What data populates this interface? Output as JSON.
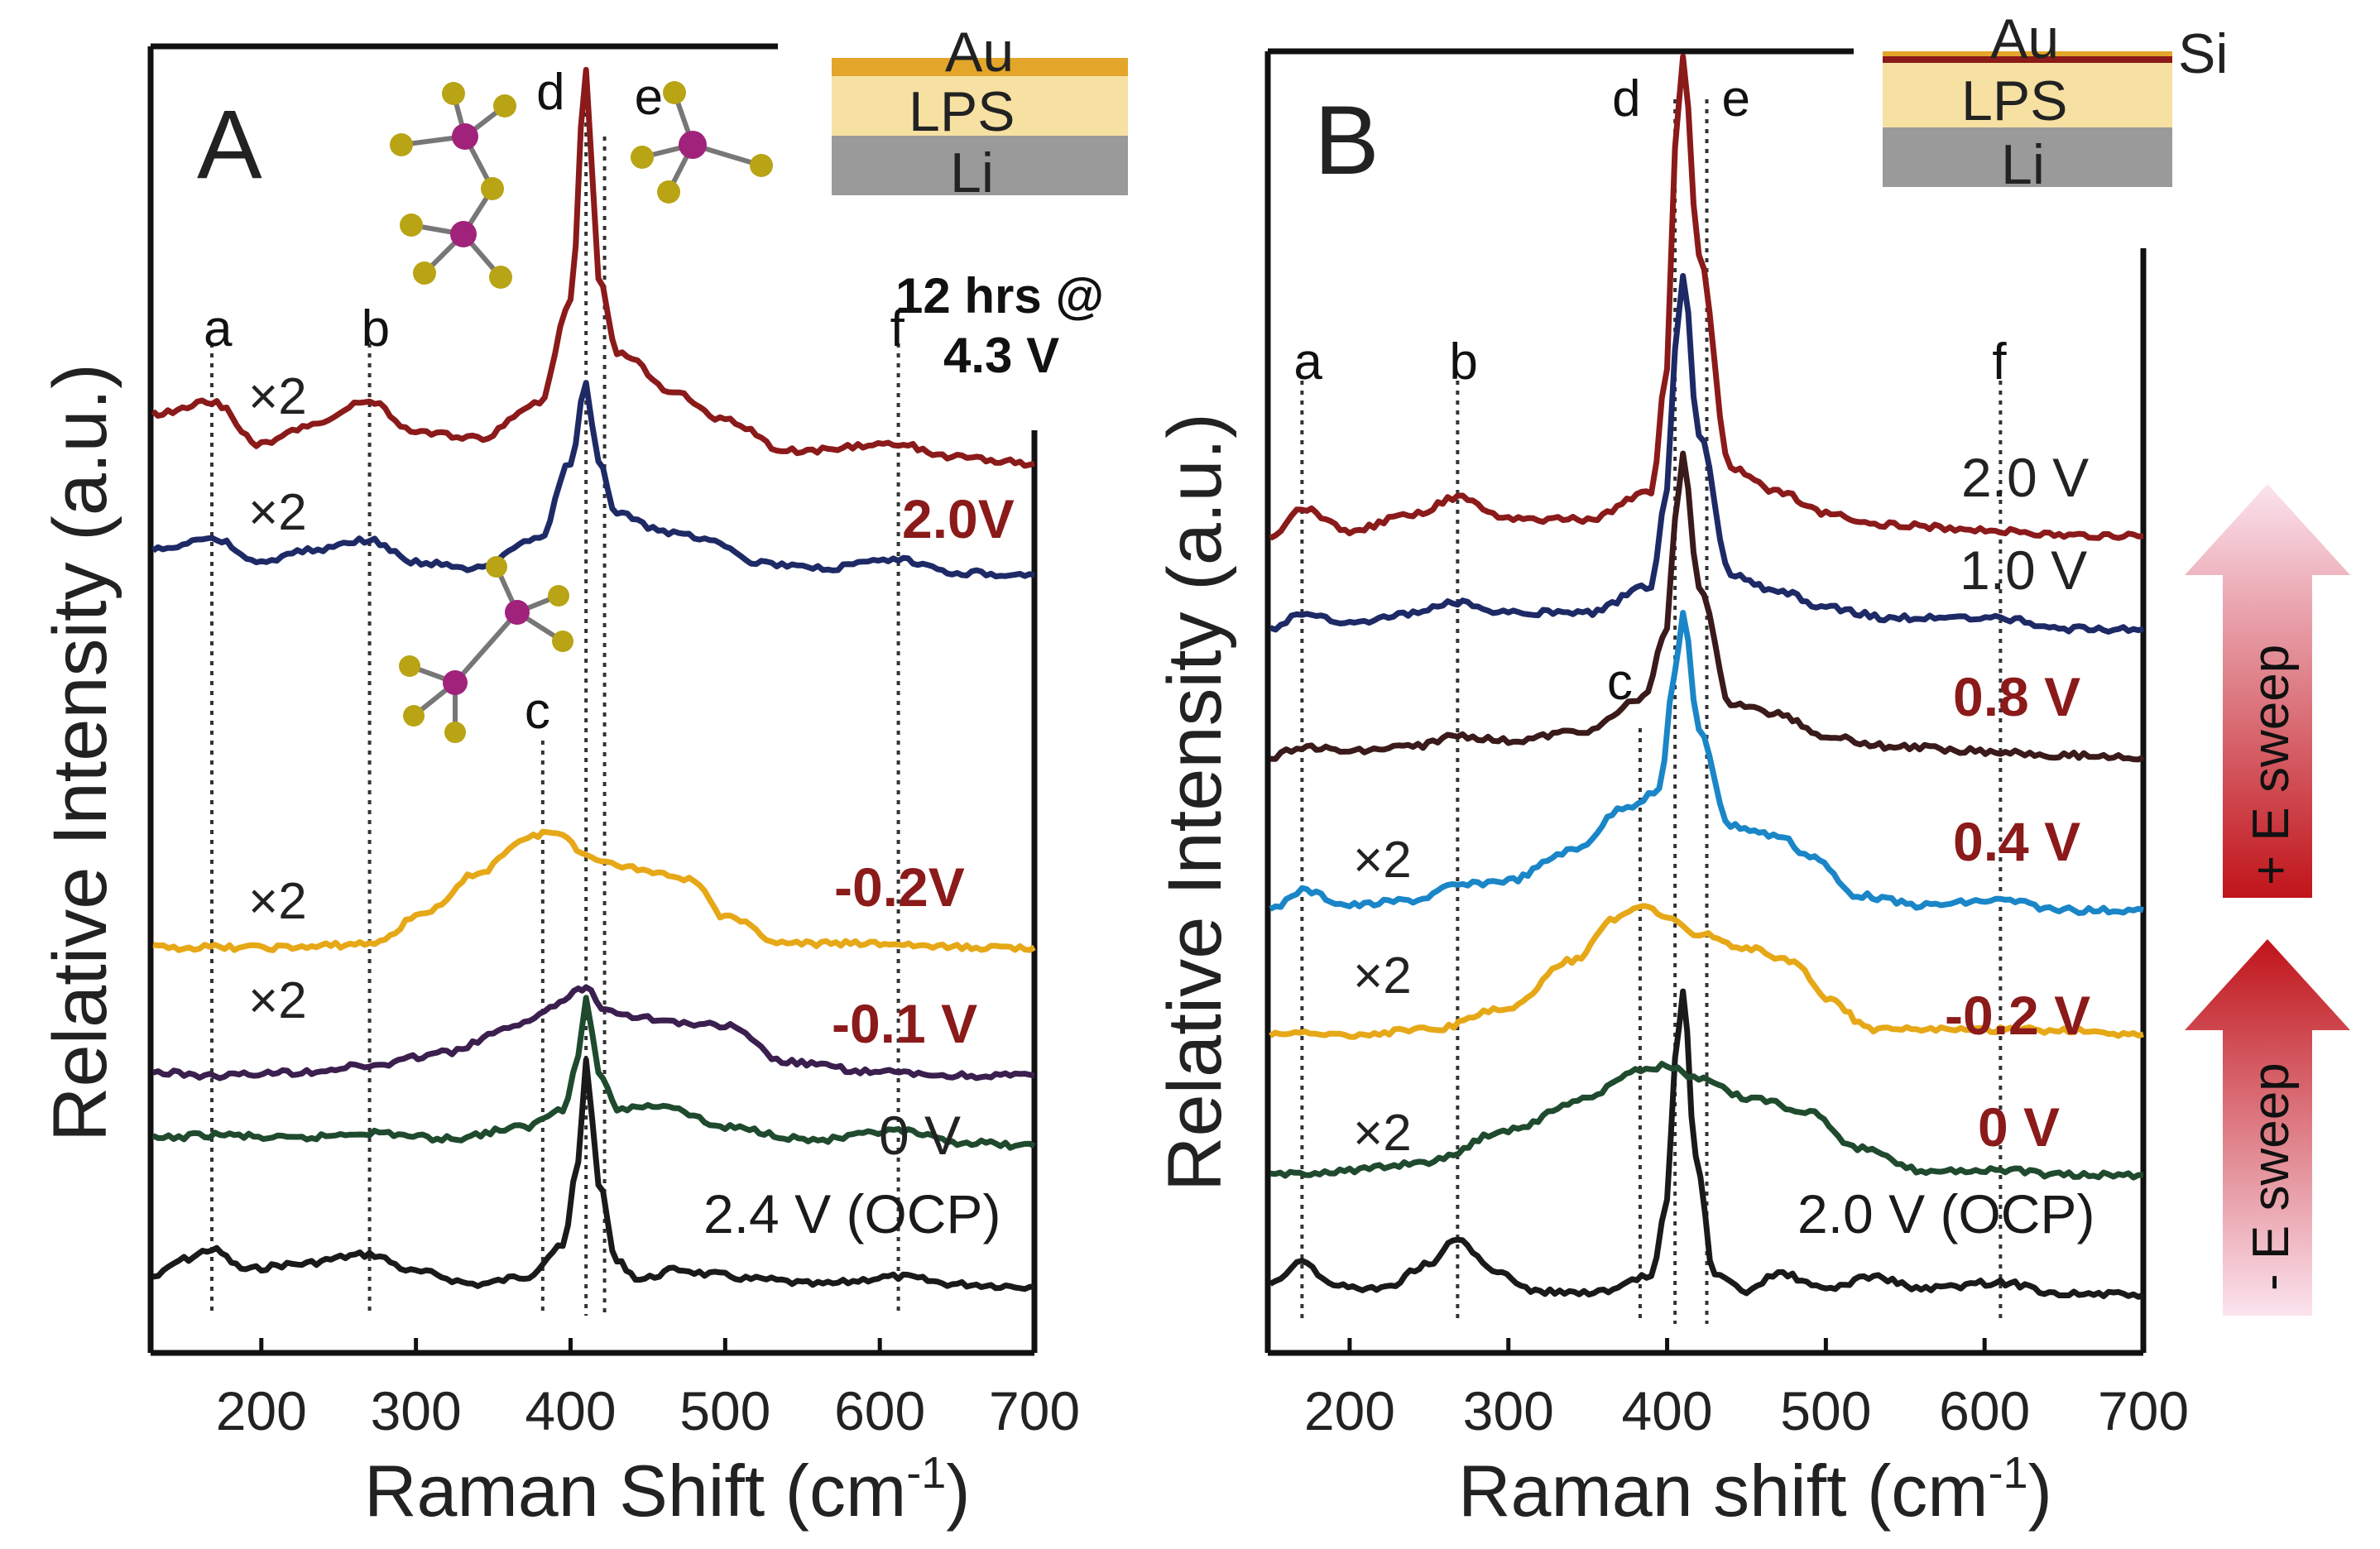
{
  "colors": {
    "dark_red": "#8b1a1a",
    "navy": "#1e2a66",
    "gold": "#e6a817",
    "purple": "#3b1f4e",
    "green": "#1f4a2e",
    "black": "#1a1a1a",
    "brown": "#3a1a1a",
    "cyan": "#1a86c7",
    "label_red": "#8b1a1a"
  },
  "chart_data": [
    {
      "type": "line",
      "panel_label": "A",
      "xlabel": "Raman Shift (cm",
      "xlabel_sup": "-1",
      "xlabel_end": ")",
      "ylabel": "Relative Intensity (a.u.)",
      "xlim": [
        130,
        700
      ],
      "xticks": [
        "200",
        "300",
        "400",
        "500",
        "600",
        "700"
      ],
      "xtick_values": [
        200,
        300,
        400,
        500,
        600,
        700
      ],
      "peak_markers": [
        {
          "label": "a",
          "x": 168
        },
        {
          "label": "b",
          "x": 270
        },
        {
          "label": "c",
          "x": 382
        },
        {
          "label": "d",
          "x": 410
        },
        {
          "label": "e",
          "x": 422
        },
        {
          "label": "f",
          "x": 612
        }
      ],
      "hold_note_line1": "12 hrs @",
      "hold_note_line2": "4.3 V",
      "inset_layers": {
        "top": "Au",
        "middle": "LPS",
        "bottom": "Li"
      },
      "series": [
        {
          "name": "2.4 V (OCP)",
          "color": "#1a1a1a",
          "label_color": "#1a1a1a",
          "bold": false,
          "multiplier": "",
          "x": [
            130,
            150,
            168,
            190,
            220,
            270,
            300,
            340,
            370,
            395,
            405,
            410,
            418,
            430,
            445,
            470,
            490,
            520,
            560,
            612,
            650,
            700
          ],
          "y": [
            0.2,
            0.55,
            0.75,
            0.35,
            0.45,
            0.65,
            0.3,
            0.05,
            0.2,
            0.8,
            2.5,
            4.6,
            2.1,
            0.5,
            0.15,
            0.35,
            0.25,
            0.15,
            0.05,
            0.2,
            0.05,
            0.0
          ]
        },
        {
          "name": "0 V",
          "color": "#1f4a2e",
          "label_color": "#222222",
          "bold": false,
          "multiplier": "",
          "x": [
            130,
            170,
            220,
            270,
            320,
            370,
            395,
            405,
            410,
            418,
            430,
            460,
            500,
            560,
            612,
            650,
            700
          ],
          "y": [
            0.1,
            0.15,
            0.1,
            0.18,
            0.1,
            0.25,
            0.5,
            1.2,
            2.0,
            1.0,
            0.5,
            0.55,
            0.25,
            0.08,
            0.2,
            0.05,
            0.0
          ]
        },
        {
          "name": "-0.1 V",
          "color": "#3b1f4e",
          "label_color": "#8b1a1a",
          "bold": true,
          "multiplier": "×2",
          "x": [
            130,
            170,
            220,
            270,
            320,
            360,
            390,
            405,
            410,
            420,
            440,
            470,
            500,
            540,
            600,
            650,
            700
          ],
          "y": [
            0.05,
            0.0,
            0.05,
            0.15,
            0.35,
            0.7,
            1.05,
            1.3,
            1.35,
            1.05,
            0.9,
            0.8,
            0.75,
            0.2,
            0.05,
            0.0,
            0.0
          ]
        },
        {
          "name": "-0.2V",
          "color": "#e6a817",
          "label_color": "#8b1a1a",
          "bold": true,
          "multiplier": "×2",
          "x": [
            130,
            170,
            220,
            270,
            310,
            340,
            370,
            385,
            395,
            410,
            430,
            460,
            480,
            500,
            540,
            600,
            650,
            700
          ],
          "y": [
            0.0,
            0.0,
            0.0,
            0.05,
            0.5,
            1.0,
            1.45,
            1.55,
            1.5,
            1.25,
            1.1,
            1.0,
            0.9,
            0.4,
            0.05,
            0.05,
            0.0,
            0.0
          ]
        },
        {
          "name": "2.0V",
          "color": "#1e2a66",
          "label_color": "#8b1a1a",
          "bold": true,
          "multiplier": "×2",
          "x": [
            130,
            168,
            200,
            230,
            270,
            300,
            340,
            380,
            400,
            410,
            418,
            430,
            460,
            490,
            520,
            560,
            612,
            650,
            700
          ],
          "y": [
            0.2,
            0.3,
            0.1,
            0.2,
            0.28,
            0.1,
            0.05,
            0.3,
            0.9,
            1.55,
            0.9,
            0.5,
            0.35,
            0.3,
            0.1,
            0.05,
            0.12,
            0.02,
            0.0
          ]
        },
        {
          "name": "12 hrs @ 4.3 V",
          "color": "#8b1a1a",
          "label_color": "#111111",
          "bold": true,
          "multiplier": "×2",
          "x": [
            130,
            168,
            200,
            230,
            270,
            300,
            340,
            380,
            400,
            410,
            418,
            430,
            470,
            500,
            540,
            612,
            650,
            700
          ],
          "y": [
            0.4,
            0.5,
            0.15,
            0.3,
            0.5,
            0.25,
            0.2,
            0.5,
            1.3,
            3.15,
            1.5,
            0.9,
            0.55,
            0.35,
            0.1,
            0.15,
            0.05,
            0.0
          ]
        }
      ]
    },
    {
      "type": "line",
      "panel_label": "B",
      "xlabel": "Raman shift (cm",
      "xlabel_sup": "-1",
      "xlabel_end": ")",
      "ylabel": "Relative Intensity (a.u.)",
      "xlim": [
        150,
        700
      ],
      "xticks": [
        "200",
        "300",
        "400",
        "500",
        "600",
        "700"
      ],
      "xtick_values": [
        200,
        300,
        400,
        500,
        600,
        700
      ],
      "peak_markers": [
        {
          "label": "a",
          "x": 170
        },
        {
          "label": "b",
          "x": 268
        },
        {
          "label": "c",
          "x": 383
        },
        {
          "label": "d",
          "x": 405
        },
        {
          "label": "e",
          "x": 425
        },
        {
          "label": "f",
          "x": 610
        }
      ],
      "inset_layers": {
        "top": "Au",
        "top_extra": "Si",
        "middle": "LPS",
        "bottom": "Li"
      },
      "sweep_arrows": {
        "upper": "+ E sweep",
        "lower": "- E sweep"
      },
      "series": [
        {
          "name": "2.0 V (OCP)",
          "color": "#1a1a1a",
          "label_color": "#1a1a1a",
          "bold": false,
          "multiplier": "",
          "x": [
            150,
            170,
            190,
            220,
            250,
            268,
            290,
            320,
            360,
            390,
            400,
            405,
            410,
            418,
            430,
            450,
            470,
            500,
            530,
            560,
            610,
            650,
            700
          ],
          "y": [
            0.2,
            0.55,
            0.15,
            0.1,
            0.5,
            0.9,
            0.4,
            0.05,
            0.05,
            0.3,
            1.5,
            3.8,
            4.9,
            2.2,
            0.3,
            0.05,
            0.35,
            0.1,
            0.3,
            0.1,
            0.2,
            0.02,
            0.0
          ]
        },
        {
          "name": "0 V",
          "color": "#1f4a2e",
          "label_color": "#8b1a1a",
          "bold": true,
          "multiplier": "×2",
          "x": [
            150,
            200,
            250,
            300,
            350,
            380,
            400,
            420,
            450,
            490,
            520,
            560,
            610,
            650,
            700
          ],
          "y": [
            0.0,
            0.05,
            0.15,
            0.5,
            0.85,
            1.15,
            1.2,
            1.05,
            0.85,
            0.7,
            0.3,
            0.05,
            0.05,
            0.0,
            0.0
          ]
        },
        {
          "name": "-0.2 V",
          "color": "#e6a817",
          "label_color": "#8b1a1a",
          "bold": true,
          "multiplier": "×2",
          "x": [
            150,
            200,
            250,
            300,
            340,
            370,
            385,
            400,
            420,
            450,
            480,
            500,
            530,
            560,
            610,
            650,
            700
          ],
          "y": [
            0.0,
            0.0,
            0.05,
            0.3,
            0.85,
            1.35,
            1.5,
            1.35,
            1.15,
            1.0,
            0.85,
            0.4,
            0.05,
            0.05,
            0.05,
            0.05,
            0.0
          ]
        },
        {
          "name": "0.4 V",
          "color": "#1a86c7",
          "label_color": "#8b1a1a",
          "bold": true,
          "multiplier": "×2",
          "x": [
            150,
            170,
            200,
            240,
            268,
            300,
            340,
            375,
            395,
            405,
            410,
            420,
            440,
            470,
            490,
            520,
            560,
            610,
            650,
            700
          ],
          "y": [
            0.0,
            0.2,
            0.05,
            0.1,
            0.25,
            0.3,
            0.6,
            1.05,
            1.2,
            2.4,
            3.0,
            1.8,
            0.85,
            0.75,
            0.55,
            0.15,
            0.05,
            0.1,
            0.0,
            0.0
          ]
        },
        {
          "name": "0.8 V",
          "color": "#3a1a1a",
          "label_color": "#8b1a1a",
          "bold": true,
          "multiplier": "",
          "x": [
            150,
            170,
            200,
            240,
            268,
            300,
            350,
            385,
            400,
            405,
            410,
            420,
            440,
            470,
            500,
            540,
            610,
            650,
            700
          ],
          "y": [
            0.0,
            0.1,
            0.05,
            0.1,
            0.2,
            0.15,
            0.25,
            0.55,
            1.2,
            2.2,
            2.8,
            1.6,
            0.5,
            0.4,
            0.2,
            0.1,
            0.05,
            0.02,
            0.0
          ]
        },
        {
          "name": "1.0 V",
          "color": "#1e2a66",
          "label_color": "#222222",
          "bold": false,
          "multiplier": "",
          "x": [
            150,
            170,
            200,
            240,
            268,
            300,
            350,
            390,
            400,
            405,
            410,
            420,
            440,
            470,
            500,
            540,
            610,
            650,
            700
          ],
          "y": [
            0.0,
            0.15,
            0.05,
            0.15,
            0.25,
            0.15,
            0.15,
            0.4,
            1.3,
            2.6,
            3.3,
            1.8,
            0.5,
            0.35,
            0.2,
            0.1,
            0.1,
            0.0,
            0.0
          ]
        },
        {
          "name": "2.0 V",
          "color": "#8b1a1a",
          "label_color": "#222222",
          "bold": false,
          "multiplier": "",
          "x": [
            150,
            170,
            200,
            240,
            268,
            300,
            350,
            390,
            400,
            405,
            410,
            420,
            440,
            470,
            500,
            540,
            610,
            650,
            700
          ],
          "y": [
            0.0,
            0.25,
            0.05,
            0.2,
            0.35,
            0.15,
            0.15,
            0.4,
            1.5,
            3.5,
            4.3,
            2.5,
            0.6,
            0.4,
            0.2,
            0.1,
            0.05,
            0.0,
            0.0
          ]
        }
      ]
    }
  ]
}
